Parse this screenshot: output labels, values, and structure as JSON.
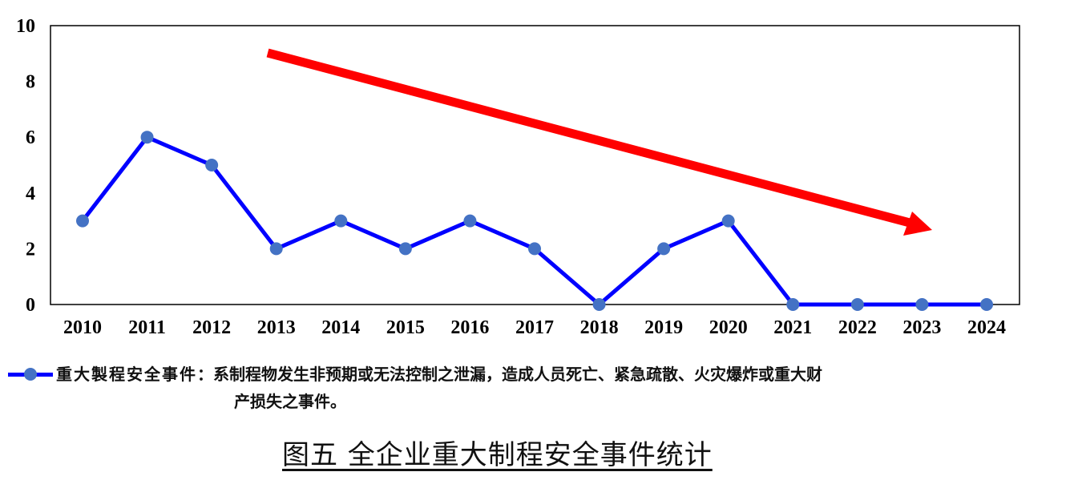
{
  "chart_data": {
    "type": "line",
    "title": "图五 全企业重大制程安全事件统计",
    "xlabel": "",
    "ylabel": "",
    "categories": [
      "2010",
      "2011",
      "2012",
      "2013",
      "2014",
      "2015",
      "2016",
      "2017",
      "2018",
      "2019",
      "2020",
      "2021",
      "2022",
      "2023",
      "2024"
    ],
    "series": [
      {
        "name": "重大製程安全事件",
        "values": [
          3,
          6,
          5,
          2,
          3,
          2,
          3,
          2,
          0,
          2,
          3,
          0,
          0,
          0,
          0
        ],
        "line_color": "#0000ff",
        "marker_color": "#4472c4"
      }
    ],
    "ylim": [
      0,
      10
    ],
    "yticks": [
      0,
      2,
      4,
      6,
      8,
      10
    ],
    "grid": false,
    "legend_position": "bottom",
    "annotations": [
      {
        "type": "arrow",
        "color": "#ff0000",
        "description": "downward trend arrow from ~2013 (y≈9) to ~2024 (y≈2.7)"
      }
    ]
  },
  "legend": {
    "name": "重大製程安全事件",
    "separator": "：",
    "definition_line1": "系制程物发生非预期或无法控制之泄漏，造成人员死亡、紧急疏散、火灾爆炸或重大财",
    "definition_line2": "产损失之事件。"
  },
  "caption": "图五  全企业重大制程安全事件统计",
  "colors": {
    "line": "#0000ff",
    "marker": "#4472c4",
    "trend_arrow": "#ff0000"
  }
}
